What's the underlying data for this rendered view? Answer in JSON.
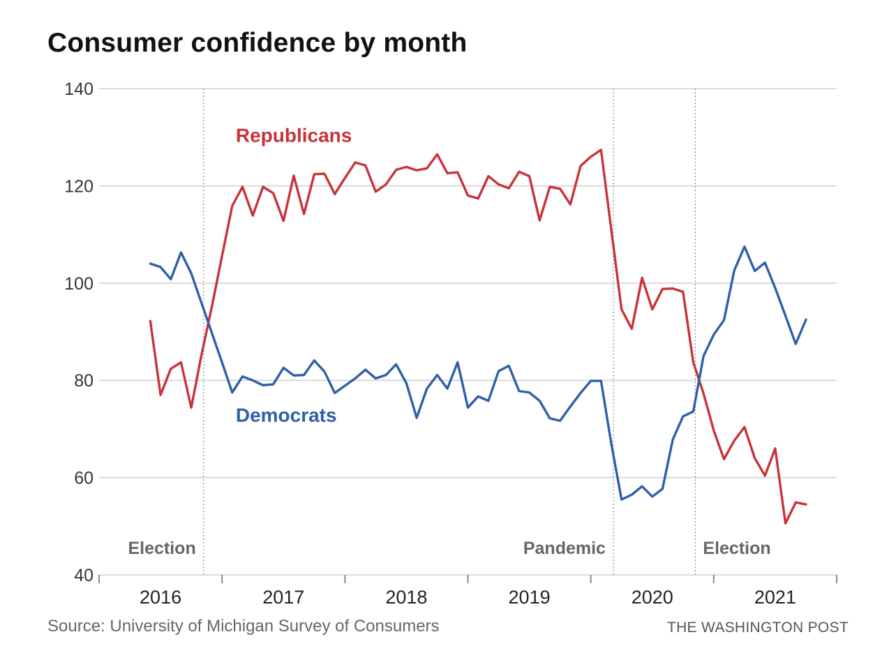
{
  "header": {
    "title": "Consumer confidence by month"
  },
  "footer": {
    "source": "Source: University of Michigan Survey of Consumers",
    "credit": "THE WASHINGTON POST"
  },
  "chart_data": {
    "type": "line",
    "title": "Consumer confidence by month",
    "xlabel": "",
    "ylabel": "",
    "ylim": [
      40,
      140
    ],
    "yticks": [
      40,
      60,
      80,
      100,
      120,
      140
    ],
    "xrange": [
      "2016-01",
      "2021-12"
    ],
    "year_labels": [
      "2016",
      "2017",
      "2018",
      "2019",
      "2020",
      "2021"
    ],
    "grid": true,
    "start_month": "2016-06",
    "end_month": "2021-10",
    "series": [
      {
        "name": "Republicans",
        "color": "#c8333a",
        "values": [
          92.2,
          77.0,
          82.4,
          83.7,
          74.4,
          85.3,
          95.1,
          105.6,
          115.9,
          119.8,
          113.9,
          119.8,
          118.5,
          112.8,
          122.1,
          114.2,
          122.4,
          122.5,
          118.3,
          121.6,
          124.8,
          124.2,
          118.8,
          120.3,
          123.3,
          123.9,
          123.2,
          123.6,
          126.5,
          122.6,
          122.8,
          118.0,
          117.4,
          122.0,
          120.3,
          119.5,
          122.9,
          122.0,
          112.9,
          119.8,
          119.4,
          116.2,
          124.1,
          126.0,
          127.4,
          111.0,
          94.6,
          90.6,
          101.1,
          94.6,
          98.8,
          98.9,
          98.2,
          83.7,
          77.3,
          69.7,
          63.8,
          67.6,
          70.4,
          64.0,
          60.4,
          66.0,
          50.6,
          54.9,
          54.5
        ]
      },
      {
        "name": "Democrats",
        "color": "#2f5fa8",
        "values": [
          104.0,
          103.3,
          100.8,
          106.3,
          102.0,
          95.9,
          89.8,
          83.7,
          77.5,
          80.8,
          80.0,
          79.0,
          79.2,
          82.6,
          81.0,
          81.1,
          84.1,
          81.8,
          77.4,
          78.9,
          80.4,
          82.2,
          80.4,
          81.1,
          83.3,
          79.4,
          72.3,
          78.3,
          81.1,
          78.3,
          83.7,
          74.4,
          76.7,
          75.8,
          81.9,
          83.0,
          77.8,
          77.5,
          75.8,
          72.2,
          71.7,
          74.6,
          77.4,
          79.9,
          79.9,
          67.0,
          55.5,
          56.5,
          58.2,
          56.1,
          57.7,
          67.8,
          72.6,
          73.6,
          85.0,
          89.4,
          92.4,
          102.6,
          107.5,
          102.5,
          104.2,
          99.0,
          93.3,
          87.5,
          92.5
        ]
      }
    ],
    "series_labels": [
      {
        "series": "Republicans",
        "text": "Republicans",
        "at_month": "2017-02",
        "at_value": 129
      },
      {
        "series": "Democrats",
        "text": "Democrats",
        "at_month": "2017-02",
        "at_value": 71.5
      }
    ],
    "annotations": [
      {
        "text": "Election",
        "month": "2016-11",
        "label_side": "left"
      },
      {
        "text": "Pandemic",
        "month": "2020-03",
        "label_side": "left"
      },
      {
        "text": "Election",
        "month": "2020-11",
        "label_side": "right"
      }
    ]
  }
}
